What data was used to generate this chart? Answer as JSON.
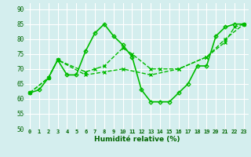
{
  "xlabel": "Humidité relative (%)",
  "xlim": [
    -0.5,
    23.5
  ],
  "ylim": [
    50,
    92
  ],
  "yticks": [
    50,
    55,
    60,
    65,
    70,
    75,
    80,
    85,
    90
  ],
  "xticks": [
    0,
    1,
    2,
    3,
    4,
    5,
    6,
    7,
    8,
    9,
    10,
    11,
    12,
    13,
    14,
    15,
    16,
    17,
    18,
    19,
    20,
    21,
    22,
    23
  ],
  "bg_color": "#d4eeee",
  "grid_color": "#ffffff",
  "line_color": "#00bb00",
  "series": [
    {
      "x": [
        0,
        1,
        2,
        3,
        4,
        5,
        6,
        7,
        8,
        9,
        10,
        11,
        12,
        13,
        14,
        15,
        16,
        17,
        18,
        19,
        20,
        21,
        22,
        23
      ],
      "y": [
        62,
        63,
        67,
        73,
        68,
        68,
        76,
        82,
        85,
        81,
        78,
        74,
        63,
        59,
        59,
        59,
        62,
        65,
        71,
        71,
        81,
        84,
        85,
        85
      ],
      "marker": "D",
      "markersize": 2.5,
      "linewidth": 1.2,
      "linestyle": "-"
    },
    {
      "x": [
        0,
        2,
        3,
        6,
        7,
        8,
        10,
        11,
        13,
        14,
        16,
        19,
        21,
        22,
        23
      ],
      "y": [
        62,
        67,
        73,
        69,
        70,
        71,
        77,
        75,
        70,
        70,
        70,
        74,
        79,
        84,
        85
      ],
      "marker": "x",
      "markersize": 3,
      "linewidth": 1.0,
      "linestyle": "--"
    },
    {
      "x": [
        0,
        2,
        3,
        6,
        8,
        10,
        13,
        16,
        19,
        21,
        23
      ],
      "y": [
        62,
        67,
        73,
        68,
        69,
        70,
        68,
        70,
        74,
        80,
        85
      ],
      "marker": "x",
      "markersize": 3,
      "linewidth": 1.0,
      "linestyle": "--"
    }
  ]
}
